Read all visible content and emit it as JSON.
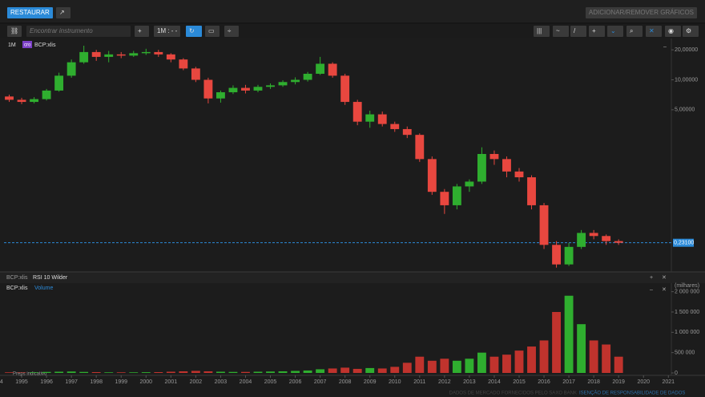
{
  "toolbar": {
    "restore": "RESTAURAR",
    "add_remove": "ADICIONAR/REMOVER GRÁFICOS",
    "search_placeholder": "Encontrar instrumento",
    "interval": "1M : - -"
  },
  "footer": {
    "provider": "DADOS DE MERCADO FORNECIDOS PELO SAXO BANK",
    "disclaimer": "ISENÇÃO DE RESPONSABILIDADE DE DADOS"
  },
  "rsi_panel": {
    "instrument": "BCP:xlis",
    "indicator": "RSI 10 Wilder"
  },
  "chart_data": [
    {
      "type": "candlestick",
      "period": "1M",
      "badge": "cro",
      "instrument": "BCP:xlis",
      "log_scale": true,
      "up_color": "#2fae2f",
      "down_color": "#e8473f",
      "x": [
        1994.5,
        1995,
        1995.5,
        1996,
        1996.5,
        1997,
        1997.5,
        1998,
        1998.5,
        1999,
        1999.5,
        2000,
        2000.5,
        2001,
        2001.5,
        2002,
        2002.5,
        2003,
        2003.5,
        2004,
        2004.5,
        2005,
        2005.5,
        2006,
        2006.5,
        2007,
        2007.5,
        2008,
        2008.5,
        2009,
        2009.5,
        2010,
        2010.5,
        2011,
        2011.5,
        2012,
        2012.5,
        2013,
        2013.5,
        2014,
        2014.5,
        2015,
        2015.5,
        2016,
        2016.5,
        2017,
        2017.5,
        2018,
        2018.5,
        2019
      ],
      "open": [
        6.8,
        6.3,
        6.0,
        6.4,
        7.8,
        11,
        15,
        19,
        17,
        18,
        17.5,
        18.5,
        19,
        18,
        16,
        13,
        10,
        6.5,
        7.5,
        8.3,
        7.8,
        8.5,
        8.8,
        9.5,
        10,
        11.5,
        14.5,
        11,
        6,
        3.8,
        4.5,
        3.6,
        3.2,
        2.8,
        1.6,
        0.75,
        0.55,
        0.85,
        0.95,
        1.8,
        1.6,
        1.2,
        1.05,
        0.55,
        0.22,
        0.14,
        0.21,
        0.29,
        0.27,
        0.24
      ],
      "high": [
        7.1,
        6.6,
        6.7,
        8.1,
        11.8,
        16,
        22,
        20,
        19.5,
        19,
        19.5,
        20.5,
        20,
        18.5,
        16.5,
        13.5,
        10.5,
        7.8,
        8.8,
        8.9,
        8.9,
        9.2,
        9.9,
        10.6,
        12,
        17,
        15,
        11.5,
        6.3,
        4.9,
        4.8,
        3.8,
        3.4,
        2.9,
        1.7,
        0.8,
        0.9,
        1.0,
        2.1,
        1.95,
        1.7,
        1.3,
        1.1,
        0.58,
        0.24,
        0.23,
        0.31,
        0.31,
        0.28,
        0.25
      ],
      "low": [
        6.0,
        5.7,
        5.8,
        6.2,
        7.6,
        10.5,
        14.5,
        15.5,
        15,
        16.5,
        17,
        17.8,
        17,
        15,
        12.5,
        9.5,
        5.8,
        5.9,
        7.2,
        7.3,
        7.5,
        8.1,
        8.5,
        9.0,
        9.6,
        11.2,
        10.5,
        5.6,
        3.5,
        3.3,
        3.4,
        3.0,
        2.6,
        1.5,
        0.7,
        0.45,
        0.5,
        0.75,
        0.9,
        1.4,
        1.05,
        0.95,
        0.5,
        0.2,
        0.13,
        0.135,
        0.2,
        0.25,
        0.22,
        0.22
      ],
      "close": [
        6.3,
        6.0,
        6.4,
        7.8,
        11,
        15,
        19,
        17,
        18,
        17.5,
        18.5,
        19,
        18,
        16,
        13,
        10,
        6.5,
        7.5,
        8.3,
        7.8,
        8.5,
        8.8,
        9.5,
        10,
        11.5,
        14.5,
        11,
        6,
        3.8,
        4.5,
        3.6,
        3.2,
        2.8,
        1.6,
        0.75,
        0.55,
        0.85,
        0.95,
        1.8,
        1.6,
        1.2,
        1.05,
        0.55,
        0.22,
        0.14,
        0.21,
        0.29,
        0.27,
        0.24,
        0.231
      ],
      "ylim": [
        0.12,
        26
      ],
      "yticks": [
        {
          "value": 20,
          "label": "20,00000"
        },
        {
          "value": 10,
          "label": "10,00000"
        },
        {
          "value": 5,
          "label": "5,00000"
        }
      ],
      "last_price": {
        "value": 0.231,
        "label": "0,23100"
      },
      "xlim": [
        1994.29,
        2021.12
      ],
      "xticks": [
        1994,
        1995,
        1996,
        1997,
        1998,
        1999,
        2000,
        2001,
        2002,
        2003,
        2004,
        2005,
        2006,
        2007,
        2008,
        2009,
        2010,
        2011,
        2012,
        2013,
        2014,
        2015,
        2016,
        2017,
        2018,
        2019,
        2020,
        2021
      ]
    },
    {
      "type": "bar",
      "instrument": "BCP:xlis",
      "name": "Volume",
      "unit_label": "(milhares)",
      "note": "Preps indicativo",
      "up_color": "#2fae2f",
      "down_color": "#c0332d",
      "x": [
        1994.5,
        1995,
        1995.5,
        1996,
        1996.5,
        1997,
        1997.5,
        1998,
        1998.5,
        1999,
        1999.5,
        2000,
        2000.5,
        2001,
        2001.5,
        2002,
        2002.5,
        2003,
        2003.5,
        2004,
        2004.5,
        2005,
        2005.5,
        2006,
        2006.5,
        2007,
        2007.5,
        2008,
        2008.5,
        2009,
        2009.5,
        2010,
        2010.5,
        2011,
        2011.5,
        2012,
        2012.5,
        2013,
        2013.5,
        2014,
        2014.5,
        2015,
        2015.5,
        2016,
        2016.5,
        2017,
        2017.5,
        2018,
        2018.5,
        2019
      ],
      "values": [
        15000,
        12000,
        15000,
        25000,
        30000,
        35000,
        25000,
        20000,
        15000,
        15000,
        15000,
        18000,
        20000,
        30000,
        40000,
        50000,
        40000,
        30000,
        25000,
        25000,
        30000,
        35000,
        40000,
        50000,
        60000,
        90000,
        110000,
        130000,
        100000,
        120000,
        110000,
        150000,
        250000,
        400000,
        300000,
        350000,
        300000,
        350000,
        500000,
        400000,
        450000,
        550000,
        650000,
        800000,
        1500000,
        1900000,
        1200000,
        800000,
        700000,
        400000
      ],
      "ylim": [
        0,
        2250000
      ],
      "yticks": [
        {
          "value": 2000000,
          "label": "2 000 000"
        },
        {
          "value": 1500000,
          "label": "1 500 000"
        },
        {
          "value": 1000000,
          "label": "1 000 000"
        },
        {
          "value": 500000,
          "label": "500 000"
        },
        0
      ]
    }
  ]
}
